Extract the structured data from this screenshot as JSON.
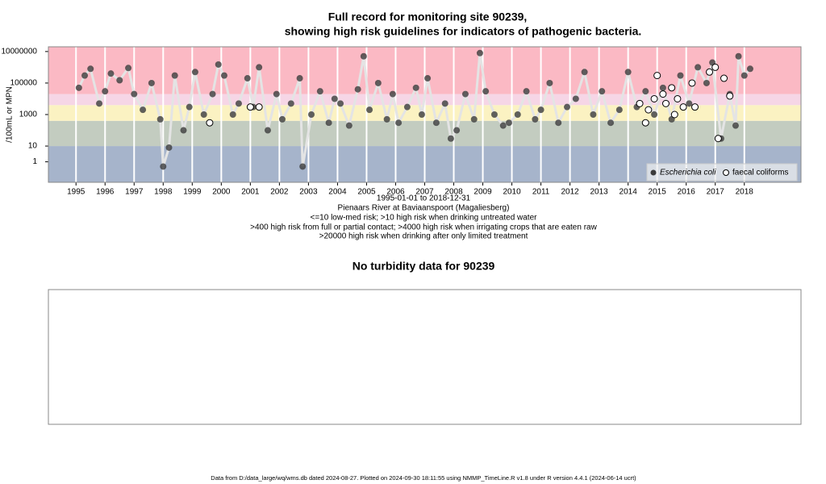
{
  "chart_data": {
    "type": "scatter",
    "title": [
      "Full record for monitoring site 90239,",
      "showing high risk guidelines for indicators of pathogenic bacteria."
    ],
    "subtitle": [
      "1995-01-01 to 2018-12-31",
      "Pienaars River at Baviaanspoort (Magaliesberg)",
      "<=10 low-med risk; >10 high risk when drinking untreated water",
      ">400 high risk from full or partial contact; >4000 high risk when irrigating crops that are eaten raw",
      ">20000 high risk when drinking after only limited treatment"
    ],
    "y_label": "/100mL or MPN",
    "log_y": true,
    "xlim": [
      1994.05,
      2019.95
    ],
    "xticks": [
      1995,
      1996,
      1997,
      1998,
      1999,
      2000,
      2001,
      2002,
      2003,
      2004,
      2005,
      2006,
      2007,
      2008,
      2009,
      2010,
      2011,
      2012,
      2013,
      2014,
      2015,
      2016,
      2017,
      2018
    ],
    "ylim": [
      0.05,
      20000000
    ],
    "yticks": [
      1,
      10,
      1000,
      100000,
      10000000
    ],
    "bands": [
      {
        "to": 10,
        "color": "#a6b4cb"
      },
      {
        "to": 400,
        "color": "#c3ccc0"
      },
      {
        "to": 4000,
        "color": "#fbf2c2"
      },
      {
        "to": 20000,
        "color": "#f6d6e6"
      },
      {
        "to": 20000000,
        "color": "#fbb9c4"
      }
    ],
    "legend": "bottomright",
    "series": [
      {
        "name": "Escherichia coli",
        "color": "#3c3c3c",
        "marker": "filled",
        "x": [
          1995.1,
          1995.3,
          1995.5,
          1995.8,
          1996.0,
          1996.2,
          1996.5,
          1996.8,
          1997.0,
          1997.3,
          1997.6,
          1997.9,
          1998.0,
          1998.2,
          1998.4,
          1998.7,
          1998.9,
          1999.1,
          1999.4,
          1999.7,
          1999.9,
          2000.1,
          2000.4,
          2000.6,
          2000.9,
          2001.1,
          2001.3,
          2001.6,
          2001.9,
          2002.1,
          2002.4,
          2002.7,
          2002.8,
          2003.1,
          2003.4,
          2003.7,
          2003.9,
          2004.1,
          2004.4,
          2004.7,
          2004.9,
          2005.1,
          2005.4,
          2005.7,
          2005.9,
          2006.1,
          2006.4,
          2006.7,
          2006.9,
          2007.1,
          2007.4,
          2007.7,
          2007.9,
          2008.1,
          2008.4,
          2008.7,
          2008.9,
          2009.1,
          2009.4,
          2009.7,
          2009.9,
          2010.2,
          2010.5,
          2010.8,
          2011.0,
          2011.3,
          2011.6,
          2011.9,
          2012.2,
          2012.5,
          2012.8,
          2013.1,
          2013.4,
          2013.7,
          2014.0,
          2014.3,
          2014.6,
          2014.9,
          2015.2,
          2015.5,
          2015.8,
          2016.1,
          2016.4,
          2016.7,
          2016.9,
          2017.2,
          2017.5,
          2017.7,
          2017.8,
          2018.0,
          2018.2
        ],
        "values": [
          50000,
          300000,
          800000,
          5000,
          30000,
          400000,
          150000,
          900000,
          20000,
          2000,
          100000,
          500,
          0.5,
          8,
          300000,
          100,
          3000,
          500000,
          1000,
          20000,
          1500000,
          300000,
          1000,
          5000,
          200000,
          3000,
          1000000,
          100,
          20000,
          500,
          5000,
          200000,
          0.5,
          1000,
          30000,
          300,
          10000,
          5000,
          200,
          40000,
          5000000,
          2000,
          100000,
          500,
          20000,
          300,
          3000,
          50000,
          1000,
          200000,
          300,
          5000,
          30,
          100,
          20000,
          500,
          8000000,
          30000,
          1000,
          200,
          300,
          1000,
          30000,
          500,
          2000,
          100000,
          300,
          3000,
          10000,
          500000,
          1000,
          30000,
          300,
          2000,
          500000,
          3000,
          30000,
          1000,
          50000,
          500,
          300000,
          5000,
          1000000,
          100000,
          2000000,
          30,
          20000,
          200,
          5000000,
          300000,
          800000
        ]
      },
      {
        "name": "faecal coliforms",
        "color": "#000000",
        "marker": "open",
        "x": [
          1999.6,
          2001.0,
          2001.3,
          2014.4,
          2014.6,
          2014.7,
          2014.9,
          2015.0,
          2015.2,
          2015.3,
          2015.5,
          2015.6,
          2015.7,
          2015.9,
          2016.2,
          2016.3,
          2016.8,
          2017.0,
          2017.1,
          2017.3,
          2017.5
        ],
        "values": [
          300,
          3000,
          3000,
          5000,
          300,
          2000,
          10000,
          300000,
          20000,
          5000,
          50000,
          1000,
          10000,
          3000,
          100000,
          3000,
          500000,
          1000000,
          30,
          200000,
          15000
        ]
      }
    ]
  },
  "turbidity_panel": {
    "title": "No turbidity data for 90239"
  },
  "footer": "Data from D:/data_large/wq/wms.db dated 2024-08-27. Plotted on 2024-09-30 18:11:55 using NMMP_TimeLine.R v1.8 under R version 4.4.1 (2024-06-14 ucrt)"
}
